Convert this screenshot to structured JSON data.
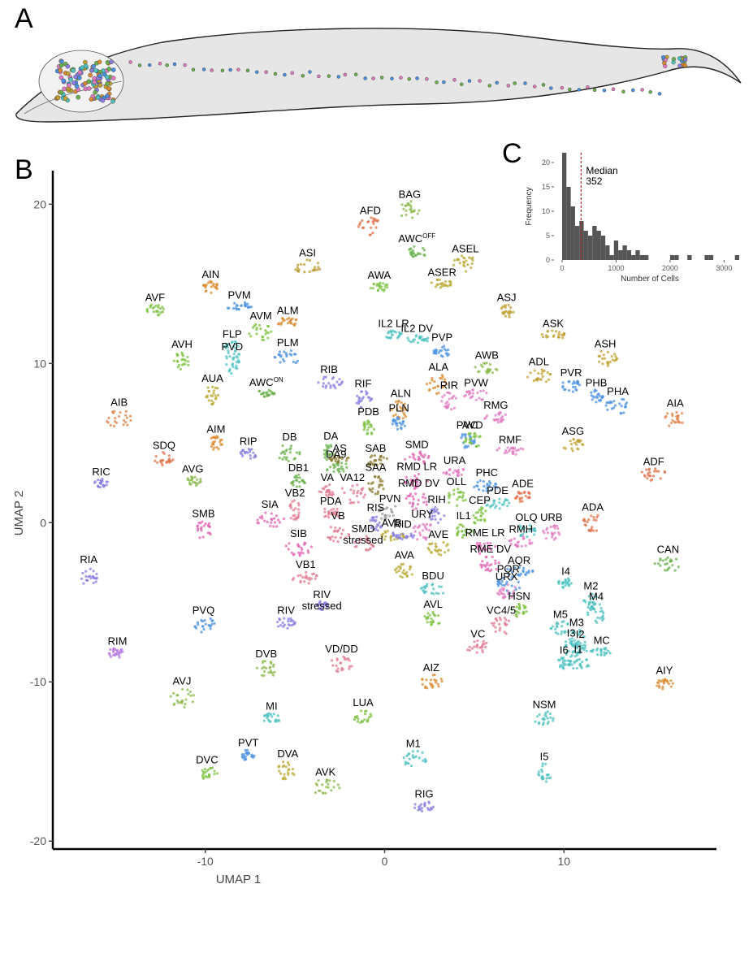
{
  "panel_labels": {
    "a": "A",
    "b": "B",
    "c": "C"
  },
  "chart_data": [
    {
      "type": "scatter",
      "title": "",
      "xlabel": "UMAP 1",
      "ylabel": "UMAP 2",
      "xlim": [
        -18.5,
        18.5
      ],
      "ylim": [
        -20.5,
        21.7
      ],
      "xticks": [
        -10,
        0,
        10
      ],
      "yticks": [
        -20,
        -10,
        0,
        10,
        20
      ],
      "xtick_labels": [
        "-10",
        "0",
        "10"
      ],
      "ytick_labels": [
        "-20",
        "-10",
        "0",
        "10",
        "20"
      ],
      "grid": false,
      "legend": "none",
      "clusters": [
        {
          "name": "BAG",
          "x": 1.4,
          "y": 19.6,
          "color": "#8bb84a"
        },
        {
          "name": "AFD",
          "x": -0.8,
          "y": 18.6,
          "color": "#e0704a"
        },
        {
          "name": "AWC",
          "sup": "OFF",
          "x": 1.8,
          "y": 17.0,
          "color": "#6ab04c"
        },
        {
          "name": "ASEL",
          "x": 4.5,
          "y": 16.2,
          "color": "#b8a830"
        },
        {
          "name": "ASI",
          "x": -4.3,
          "y": 16.0,
          "color": "#b89a30"
        },
        {
          "name": "AWA",
          "x": -0.3,
          "y": 14.8,
          "color": "#7cc140"
        },
        {
          "name": "ASER",
          "x": 3.2,
          "y": 15.0,
          "color": "#b8a830"
        },
        {
          "name": "AIN",
          "x": -9.7,
          "y": 14.8,
          "color": "#d98a30"
        },
        {
          "name": "ASJ",
          "x": 6.8,
          "y": 13.3,
          "color": "#c0a030"
        },
        {
          "name": "ASK",
          "x": 9.4,
          "y": 11.8,
          "color": "#c0a030"
        },
        {
          "name": "AVF",
          "x": -12.8,
          "y": 13.3,
          "color": "#7cc140"
        },
        {
          "name": "PVM",
          "x": -8.1,
          "y": 13.6,
          "color": "#4a90e0"
        },
        {
          "name": "ALM",
          "x": -5.4,
          "y": 12.6,
          "color": "#d98a30"
        },
        {
          "name": "AVM",
          "x": -6.9,
          "y": 12.0,
          "color": "#7cc140"
        },
        {
          "name": "IL2 LR",
          "x": 0.5,
          "y": 11.8,
          "color": "#4ec2c0"
        },
        {
          "name": "IL2 DV",
          "x": 1.8,
          "y": 11.5,
          "color": "#4ec2c0"
        },
        {
          "name": "PVP",
          "x": 3.2,
          "y": 10.8,
          "color": "#4a90e0"
        },
        {
          "name": "FLP",
          "x": -8.5,
          "y": 10.8,
          "color": "#4ec2c0"
        },
        {
          "name": "PLM",
          "x": -5.4,
          "y": 10.4,
          "color": "#4a90e0"
        },
        {
          "name": "ASH",
          "x": 12.3,
          "y": 10.3,
          "color": "#c0a030"
        },
        {
          "name": "AVH",
          "x": -11.3,
          "y": 10.2,
          "color": "#7cc140"
        },
        {
          "name": "PVD",
          "x": -8.5,
          "y": 10.0,
          "color": "#4ec2c0"
        },
        {
          "name": "AWB",
          "x": 5.7,
          "y": 9.7,
          "color": "#8bb84a"
        },
        {
          "name": "ADL",
          "x": 8.6,
          "y": 9.2,
          "color": "#c0a030"
        },
        {
          "name": "RIB",
          "x": -3.1,
          "y": 8.8,
          "color": "#8a7ee0"
        },
        {
          "name": "ALA",
          "x": 3.0,
          "y": 8.7,
          "color": "#d98a30"
        },
        {
          "name": "PVW",
          "x": 5.1,
          "y": 8.0,
          "color": "#e07ac0"
        },
        {
          "name": "PVR",
          "x": 10.4,
          "y": 8.6,
          "color": "#4a90e0"
        },
        {
          "name": "PHB",
          "x": 11.8,
          "y": 7.9,
          "color": "#4a90e0"
        },
        {
          "name": "AIB",
          "x": -14.8,
          "y": 6.5,
          "color": "#e0804a"
        },
        {
          "name": "AUA",
          "x": -9.6,
          "y": 8.0,
          "color": "#b8a830"
        },
        {
          "name": "RIF",
          "x": -1.2,
          "y": 7.7,
          "color": "#8a7ee0"
        },
        {
          "name": "ALN",
          "x": 0.9,
          "y": 7.1,
          "color": "#d98a30"
        },
        {
          "name": "RIR",
          "x": 3.6,
          "y": 7.6,
          "color": "#e07ac0"
        },
        {
          "name": "AWC",
          "sup": "ON",
          "x": -6.6,
          "y": 8.1,
          "color": "#6ab04c"
        },
        {
          "name": "AIA",
          "x": 16.2,
          "y": 6.5,
          "color": "#e0804a"
        },
        {
          "name": "PHA",
          "x": 13.0,
          "y": 7.3,
          "color": "#4a90e0"
        },
        {
          "name": "RMG",
          "x": 6.2,
          "y": 6.6,
          "color": "#e07ac0"
        },
        {
          "name": "PDB",
          "x": -0.9,
          "y": 6.0,
          "color": "#7cc140"
        },
        {
          "name": "PLN",
          "x": 0.8,
          "y": 6.3,
          "color": "#4a90e0"
        },
        {
          "name": "PVC",
          "x": 4.6,
          "y": 5.2,
          "color": "#4a90e0"
        },
        {
          "name": "AVD",
          "x": 4.9,
          "y": 5.2,
          "color": "#7cc140"
        },
        {
          "name": "AIM",
          "x": -9.4,
          "y": 5.0,
          "color": "#d98a30"
        },
        {
          "name": "ASG",
          "x": 10.5,
          "y": 4.9,
          "color": "#c0a030"
        },
        {
          "name": "DB",
          "x": -5.3,
          "y": 4.4,
          "color": "#6ab04c"
        },
        {
          "name": "DA",
          "x": -3.0,
          "y": 4.4,
          "color": "#6ab04c"
        },
        {
          "name": "SDQ",
          "x": -12.3,
          "y": 4.0,
          "color": "#e0704a"
        },
        {
          "name": "RIP",
          "x": -7.6,
          "y": 4.3,
          "color": "#8a7ee0"
        },
        {
          "name": "SAB",
          "x": -0.5,
          "y": 3.9,
          "color": "#8a7a30"
        },
        {
          "name": "SMD",
          "x": 1.8,
          "y": 4.0,
          "color": "#e060b0"
        },
        {
          "name": "RMF",
          "x": 7.0,
          "y": 4.5,
          "color": "#e07ac0"
        },
        {
          "name": "AS",
          "x": -2.5,
          "y": 4.0,
          "color": "#8a7a30"
        },
        {
          "name": "DA9",
          "x": -2.7,
          "y": 3.5,
          "color": "#6ab04c"
        },
        {
          "name": "DB1",
          "x": -4.8,
          "y": 2.6,
          "color": "#6ab04c"
        },
        {
          "name": "RIC",
          "x": -15.8,
          "y": 2.5,
          "color": "#8a7ee0"
        },
        {
          "name": "AVG",
          "x": -10.7,
          "y": 2.6,
          "color": "#8bb84a"
        },
        {
          "name": "ADF",
          "x": 15.0,
          "y": 3.0,
          "color": "#e0704a"
        },
        {
          "name": "RMD LR",
          "x": 1.8,
          "y": 2.6,
          "color": "#e060b0"
        },
        {
          "name": "URA",
          "x": 3.9,
          "y": 3.2,
          "color": "#e07ac0"
        },
        {
          "name": "PHC",
          "x": 5.7,
          "y": 2.3,
          "color": "#4a90e0"
        },
        {
          "name": "SAA",
          "x": -0.5,
          "y": 2.4,
          "color": "#8a7a30"
        },
        {
          "name": "VA",
          "x": -3.2,
          "y": 2.0,
          "color": "#e07a90"
        },
        {
          "name": "VA12",
          "x": -1.8,
          "y": 1.8,
          "color": "#e07a90"
        },
        {
          "name": "RMD DV",
          "x": 1.9,
          "y": 1.4,
          "color": "#e060b0"
        },
        {
          "name": "OLL",
          "x": 4.0,
          "y": 1.6,
          "color": "#7cc140"
        },
        {
          "name": "PDE",
          "x": 6.3,
          "y": 1.2,
          "color": "#4ec2c0"
        },
        {
          "name": "ADE",
          "x": 7.7,
          "y": 1.6,
          "color": "#e0704a"
        },
        {
          "name": "VB2",
          "x": -5.0,
          "y": 0.8,
          "color": "#e07a90"
        },
        {
          "name": "PDA",
          "x": -3.0,
          "y": 0.6,
          "color": "#e07a90"
        },
        {
          "name": "PVN",
          "x": 0.3,
          "y": 0.6,
          "color": "#9a9a9a"
        },
        {
          "name": "CEP",
          "x": 5.3,
          "y": 0.4,
          "color": "#7cc140"
        },
        {
          "name": "RIS",
          "x": -0.5,
          "y": 0.0,
          "color": "#8a7ee0"
        },
        {
          "name": "RIH",
          "x": 2.9,
          "y": 0.5,
          "color": "#8a7ee0"
        },
        {
          "name": "SIA",
          "x": -6.4,
          "y": 0.2,
          "color": "#e060b0"
        },
        {
          "name": "URY",
          "x": 2.1,
          "y": -0.5,
          "color": "#e07ac0"
        },
        {
          "name": "IL1",
          "x": 4.4,
          "y": -0.5,
          "color": "#7cc140"
        },
        {
          "name": "OLQ",
          "x": 7.9,
          "y": -0.5,
          "color": "#4ec2c0"
        },
        {
          "name": "ADA",
          "x": 11.6,
          "y": 0.0,
          "color": "#e0704a"
        },
        {
          "name": "VB",
          "x": -2.6,
          "y": -0.6,
          "color": "#e07a90"
        },
        {
          "name": "AVB",
          "x": 0.4,
          "y": -0.8,
          "color": "#b8a830"
        },
        {
          "name": "RID",
          "x": 1.0,
          "y": -0.8,
          "color": "#8a7ee0"
        },
        {
          "name": "URB",
          "x": 9.3,
          "y": -0.6,
          "color": "#e07ac0"
        },
        {
          "name": "SMB",
          "x": -10.1,
          "y": -0.5,
          "color": "#e060b0"
        },
        {
          "name": "SIB",
          "x": -4.8,
          "y": -1.6,
          "color": "#e060b0"
        },
        {
          "name": "SMD stressed",
          "x": -1.2,
          "y": -1.4,
          "color": "#e07a90"
        },
        {
          "name": "RME LR",
          "x": 5.6,
          "y": -1.6,
          "color": "#e060b0"
        },
        {
          "name": "RMH",
          "x": 7.6,
          "y": -1.2,
          "color": "#e07ac0"
        },
        {
          "name": "AVE",
          "x": 3.0,
          "y": -1.6,
          "color": "#b8a830"
        },
        {
          "name": "CAN",
          "x": 15.8,
          "y": -2.6,
          "color": "#6ab04c"
        },
        {
          "name": "RIA",
          "x": -16.5,
          "y": -3.4,
          "color": "#8a7ee0"
        },
        {
          "name": "AQR",
          "x": 7.5,
          "y": -3.1,
          "color": "#4a90e0"
        },
        {
          "name": "RME DV",
          "x": 5.9,
          "y": -2.6,
          "color": "#e060b0"
        },
        {
          "name": "VB1",
          "x": -4.4,
          "y": -3.5,
          "color": "#e07a90"
        },
        {
          "name": "AVA",
          "x": 1.1,
          "y": -3.0,
          "color": "#b8a830"
        },
        {
          "name": "PQR",
          "x": 6.9,
          "y": -3.9,
          "color": "#4a90e0"
        },
        {
          "name": "I4",
          "x": 10.1,
          "y": -3.8,
          "color": "#4ec2c0"
        },
        {
          "name": "URX",
          "x": 6.8,
          "y": -4.3,
          "color": "#e07ac0"
        },
        {
          "name": "BDU",
          "x": 2.7,
          "y": -4.2,
          "color": "#4ec2c0"
        },
        {
          "name": "RIV stressed",
          "x": -3.5,
          "y": -5.2,
          "color": "#8a7ee0"
        },
        {
          "name": "M2",
          "x": 11.5,
          "y": -5.0,
          "color": "#4ec2c0"
        },
        {
          "name": "RIV",
          "x": -5.5,
          "y": -6.3,
          "color": "#8a7ee0"
        },
        {
          "name": "PVQ",
          "x": -10.1,
          "y": -6.4,
          "color": "#4a90e0"
        },
        {
          "name": "AVL",
          "x": 2.7,
          "y": -6.0,
          "color": "#7cc140"
        },
        {
          "name": "HSN",
          "x": 7.5,
          "y": -5.5,
          "color": "#7cc140"
        },
        {
          "name": "M4",
          "x": 11.8,
          "y": -5.7,
          "color": "#4ec2c0"
        },
        {
          "name": "VC4/5",
          "x": 6.5,
          "y": -6.5,
          "color": "#e07a90"
        },
        {
          "name": "M5",
          "x": 9.8,
          "y": -6.6,
          "color": "#4ec2c0"
        },
        {
          "name": "M3",
          "x": 10.7,
          "y": -7.3,
          "color": "#4ec2c0"
        },
        {
          "name": "I3",
          "x": 10.4,
          "y": -7.9,
          "color": "#4ec2c0"
        },
        {
          "name": "I2",
          "x": 10.9,
          "y": -7.9,
          "color": "#4ec2c0"
        },
        {
          "name": "MC",
          "x": 12.1,
          "y": -8.1,
          "color": "#4ec2c0"
        },
        {
          "name": "RIM",
          "x": -14.9,
          "y": -8.2,
          "color": "#b070e0"
        },
        {
          "name": "VC",
          "x": 5.2,
          "y": -7.8,
          "color": "#e07a90"
        },
        {
          "name": "I6",
          "x": 10.0,
          "y": -8.8,
          "color": "#4ec2c0"
        },
        {
          "name": "I1",
          "x": 10.8,
          "y": -8.8,
          "color": "#4ec2c0"
        },
        {
          "name": "DVB",
          "x": -6.6,
          "y": -9.2,
          "color": "#8bb84a"
        },
        {
          "name": "VD/DD",
          "x": -2.4,
          "y": -8.9,
          "color": "#e07a90"
        },
        {
          "name": "AIZ",
          "x": 2.6,
          "y": -10.0,
          "color": "#d98a30"
        },
        {
          "name": "AIY",
          "x": 15.6,
          "y": -10.1,
          "color": "#d98a30"
        },
        {
          "name": "AVJ",
          "x": -11.3,
          "y": -11.0,
          "color": "#8bb84a"
        },
        {
          "name": "MI",
          "x": -6.3,
          "y": -12.3,
          "color": "#4ec2c0"
        },
        {
          "name": "LUA",
          "x": -1.2,
          "y": -12.2,
          "color": "#7cc140"
        },
        {
          "name": "NSM",
          "x": 8.9,
          "y": -12.3,
          "color": "#4ec2c0"
        },
        {
          "name": "PVT",
          "x": -7.6,
          "y": -14.6,
          "color": "#4a90e0"
        },
        {
          "name": "DVA",
          "x": -5.4,
          "y": -15.6,
          "color": "#b8a830"
        },
        {
          "name": "M1",
          "x": 1.6,
          "y": -14.8,
          "color": "#4ec2c0"
        },
        {
          "name": "DVC",
          "x": -9.9,
          "y": -15.7,
          "color": "#7cc140"
        },
        {
          "name": "AVK",
          "x": -3.3,
          "y": -16.6,
          "color": "#8bb84a"
        },
        {
          "name": "I5",
          "x": 8.9,
          "y": -15.7,
          "color": "#4ec2c0"
        },
        {
          "name": "RIG",
          "x": 2.2,
          "y": -17.8,
          "color": "#8a7ee0"
        }
      ]
    },
    {
      "type": "bar",
      "title": "",
      "xlabel": "Number of Cells",
      "ylabel": "Frequency",
      "xlim": [
        -150,
        3400
      ],
      "ylim": [
        0,
        22
      ],
      "xticks": [
        0,
        1000,
        2000,
        3000
      ],
      "yticks": [
        0,
        5,
        10,
        15,
        20
      ],
      "xtick_labels": [
        "0",
        "1000",
        "2000",
        "3000"
      ],
      "ytick_labels": [
        "0",
        "5",
        "10",
        "15",
        "20"
      ],
      "bin_width": 80,
      "bin_starts": [
        0,
        80,
        160,
        240,
        320,
        400,
        480,
        560,
        640,
        720,
        800,
        880,
        960,
        1040,
        1120,
        1200,
        1280,
        1360,
        1440,
        1520,
        1600,
        1680,
        1760,
        1840,
        1920,
        2000,
        2080,
        2160,
        2240,
        2320,
        2400,
        2480,
        2560,
        2640,
        2720,
        2800,
        2880,
        2960,
        3040,
        3120,
        3200
      ],
      "values": [
        22,
        15,
        11,
        7,
        8,
        6,
        5,
        7,
        6,
        5,
        3,
        1,
        4,
        2,
        3,
        2,
        1,
        2,
        1,
        1,
        0,
        0,
        0,
        0,
        0,
        1,
        1,
        0,
        0,
        1,
        0,
        0,
        0,
        1,
        1,
        0,
        0,
        0,
        0,
        0,
        1
      ],
      "bar_color": "#555555",
      "median": 352,
      "annotation_lines": [
        "Median",
        "352"
      ]
    }
  ]
}
